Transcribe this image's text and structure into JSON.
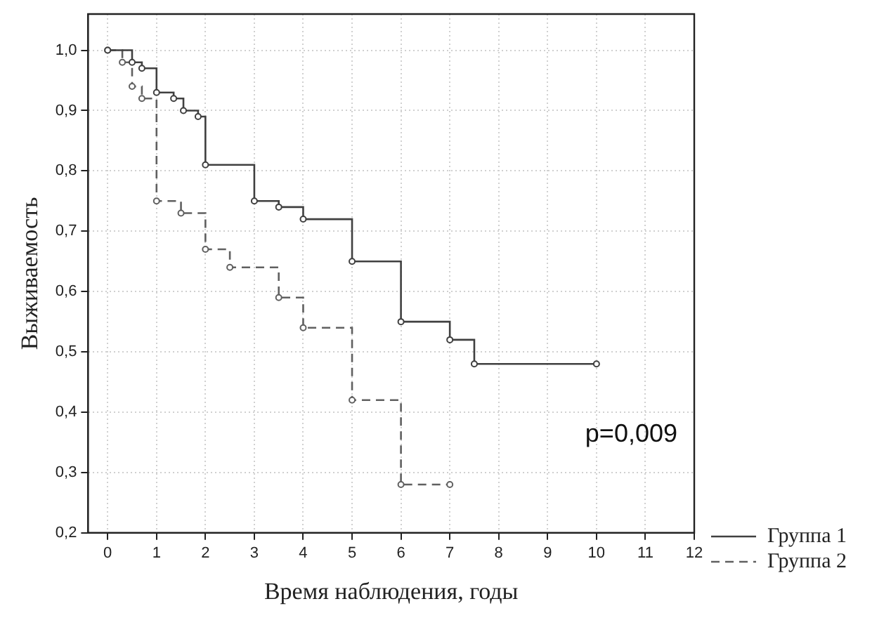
{
  "chart_data": {
    "type": "step",
    "xlabel": "Время наблюдения, годы",
    "ylabel": "Выживаемость",
    "xlim": [
      -0.4,
      12
    ],
    "xticks": [
      0,
      1,
      2,
      3,
      4,
      5,
      6,
      7,
      8,
      9,
      10,
      11,
      12
    ],
    "ylim": [
      0.2,
      1.06
    ],
    "yticks": [
      {
        "value": 0.2,
        "label": "0,2"
      },
      {
        "value": 0.3,
        "label": "0,3"
      },
      {
        "value": 0.4,
        "label": "0,4"
      },
      {
        "value": 0.5,
        "label": "0,5"
      },
      {
        "value": 0.6,
        "label": "0,6"
      },
      {
        "value": 0.7,
        "label": "0,7"
      },
      {
        "value": 0.8,
        "label": "0,8"
      },
      {
        "value": 0.9,
        "label": "0,9"
      },
      {
        "value": 1.0,
        "label": "1,0"
      }
    ],
    "series": [
      {
        "name": "Группа 1",
        "color": "#404040",
        "line_style": "solid",
        "x": [
          0,
          0.5,
          0.7,
          1.0,
          1.35,
          1.55,
          1.85,
          2.0,
          3.0,
          3.5,
          4.0,
          5.0,
          6.0,
          7.0,
          7.5,
          10
        ],
        "values": [
          1.0,
          0.98,
          0.97,
          0.93,
          0.92,
          0.9,
          0.89,
          0.81,
          0.75,
          0.74,
          0.72,
          0.65,
          0.55,
          0.52,
          0.48,
          0.48
        ]
      },
      {
        "name": "Группа 2",
        "color": "#606060",
        "line_style": "dashed",
        "x": [
          0,
          0.3,
          0.5,
          0.7,
          1.0,
          1.5,
          2.0,
          2.5,
          3.5,
          4.0,
          5.0,
          6.0,
          7.0
        ],
        "values": [
          1.0,
          0.98,
          0.94,
          0.92,
          0.75,
          0.73,
          0.67,
          0.64,
          0.59,
          0.54,
          0.42,
          0.28,
          0.28
        ]
      }
    ],
    "marker": "circle",
    "grid": true,
    "legend": "bottom right",
    "annotations": [
      "p=0,009"
    ]
  }
}
